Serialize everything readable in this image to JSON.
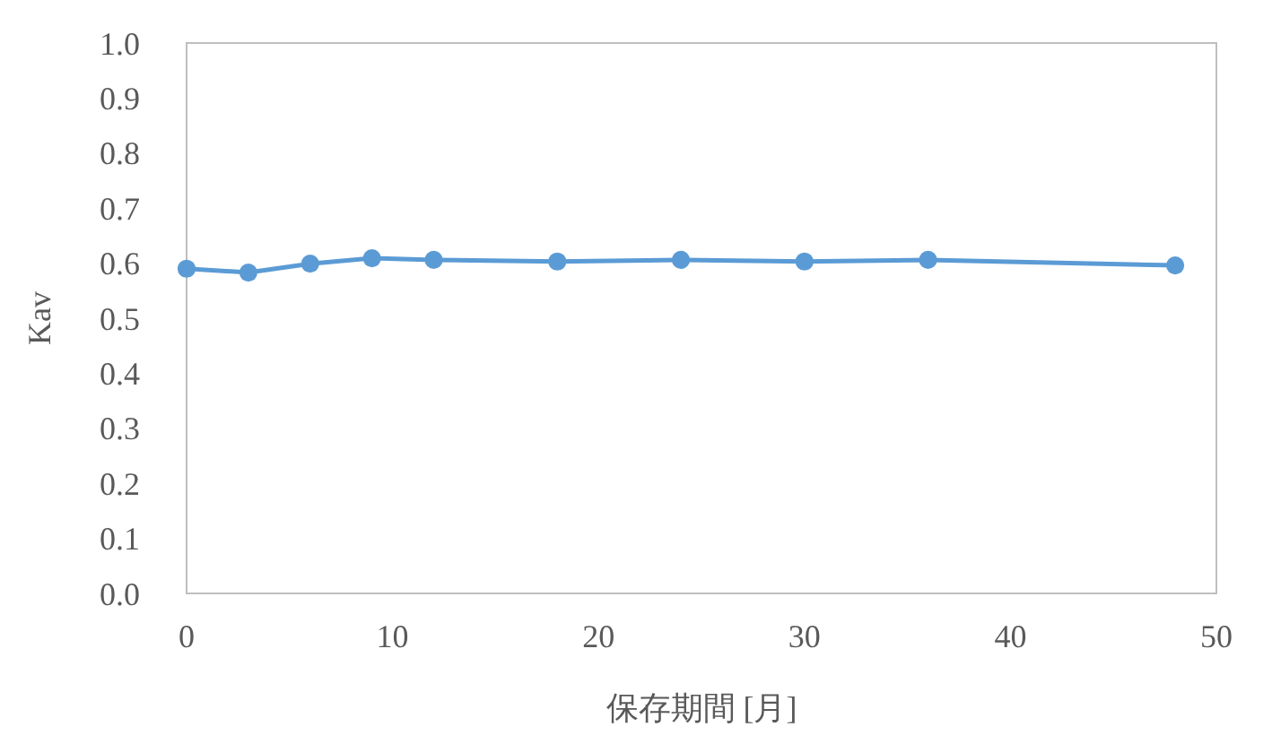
{
  "chart_data": {
    "type": "line",
    "xlabel": "保存期間 [月]",
    "ylabel": "Kav",
    "x": [
      0,
      3,
      6,
      9,
      12,
      18,
      24,
      30,
      36,
      48
    ],
    "series": [
      {
        "color": "#5b9bd5",
        "values": [
          0.59,
          0.583,
          0.599,
          0.609,
          0.606,
          0.603,
          0.606,
          0.603,
          0.606,
          0.596
        ]
      }
    ],
    "xlim": [
      0,
      50
    ],
    "xticks": [
      0,
      10,
      20,
      30,
      40,
      50
    ],
    "ylim": [
      0,
      1
    ],
    "yticks": [
      {
        "value": 0,
        "label": "0.0"
      },
      {
        "value": 0.1,
        "label": "0.1"
      },
      {
        "value": 0.2,
        "label": "0.2"
      },
      {
        "value": 0.3,
        "label": "0.3"
      },
      {
        "value": 0.4,
        "label": "0.4"
      },
      {
        "value": 0.5,
        "label": "0.5"
      },
      {
        "value": 0.6,
        "label": "0.6"
      },
      {
        "value": 0.7,
        "label": "0.7"
      },
      {
        "value": 0.8,
        "label": "0.8"
      },
      {
        "value": 0.9,
        "label": "0.9"
      },
      {
        "value": 1,
        "label": "1.0"
      }
    ],
    "marker": "circle",
    "grid": false
  }
}
